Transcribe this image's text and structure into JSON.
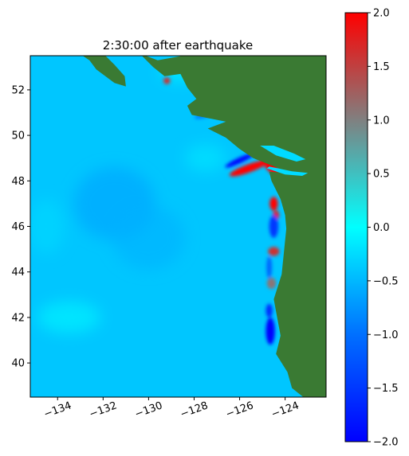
{
  "chart_data": {
    "type": "heatmap",
    "title": "2:30:00 after earthquake",
    "xlabel": "",
    "ylabel": "",
    "xlim": [
      -135.2,
      -122.2
    ],
    "ylim": [
      38.5,
      53.5
    ],
    "x_ticks": [
      -134,
      -132,
      -130,
      -128,
      -126,
      -124
    ],
    "x_tick_labels": [
      "−134",
      "−132",
      "−130",
      "−128",
      "−126",
      "−124"
    ],
    "y_ticks": [
      40,
      42,
      44,
      46,
      48,
      50,
      52
    ],
    "y_tick_labels": [
      "40",
      "42",
      "44",
      "46",
      "48",
      "50",
      "52"
    ],
    "colorbar": {
      "range": [
        -2.0,
        2.0
      ],
      "ticks": [
        -2.0,
        -1.5,
        -1.0,
        -0.5,
        0.0,
        0.5,
        1.0,
        1.5,
        2.0
      ],
      "tick_labels": [
        "−2.0",
        "−1.5",
        "−1.0",
        "−0.5",
        "0.0",
        "0.5",
        "1.0",
        "1.5",
        "2.0"
      ],
      "colors": [
        "#0000ff",
        "#0070ff",
        "#00ffff",
        "#808080",
        "#ff0000"
      ]
    },
    "land_color": "#3a7a33",
    "ocean_background_value": -0.4,
    "grid": false,
    "coastline": [
      [
        -122.2,
        53.5
      ],
      [
        -128.5,
        53.5
      ],
      [
        -129.6,
        53.3
      ],
      [
        -130.4,
        53.6
      ],
      [
        -129.8,
        53.0
      ],
      [
        -129.3,
        52.6
      ],
      [
        -128.6,
        52.7
      ],
      [
        -128.3,
        52.1
      ],
      [
        -127.9,
        51.6
      ],
      [
        -128.3,
        51.3
      ],
      [
        -128.1,
        50.9
      ],
      [
        -126.6,
        50.6
      ],
      [
        -127.4,
        50.3
      ],
      [
        -126.6,
        49.9
      ],
      [
        -126.0,
        49.4
      ],
      [
        -125.4,
        49.0
      ],
      [
        -124.4,
        48.6
      ],
      [
        -123.8,
        48.35
      ],
      [
        -124.7,
        48.4
      ],
      [
        -124.6,
        48.0
      ],
      [
        -124.2,
        47.2
      ],
      [
        -124.0,
        46.5
      ],
      [
        -123.95,
        45.9
      ],
      [
        -124.05,
        44.9
      ],
      [
        -124.15,
        43.9
      ],
      [
        -124.5,
        42.8
      ],
      [
        -124.35,
        42.0
      ],
      [
        -124.2,
        41.2
      ],
      [
        -124.4,
        40.4
      ],
      [
        -123.9,
        39.6
      ],
      [
        -123.7,
        38.9
      ],
      [
        -123.2,
        38.5
      ],
      [
        -122.2,
        38.5
      ]
    ],
    "strait": [
      [
        -124.8,
        48.55
      ],
      [
        -124.0,
        48.28
      ],
      [
        -123.25,
        48.22
      ],
      [
        -123.0,
        48.35
      ],
      [
        -123.7,
        48.42
      ],
      [
        -124.7,
        48.63
      ]
    ],
    "strait_of_georgia": [
      [
        -125.1,
        49.55
      ],
      [
        -124.4,
        49.12
      ],
      [
        -123.5,
        48.85
      ],
      [
        -123.1,
        48.95
      ],
      [
        -123.6,
        49.2
      ],
      [
        -124.5,
        49.55
      ]
    ],
    "haida_gwaii": [
      [
        -132.9,
        53.5
      ],
      [
        -131.9,
        53.5
      ],
      [
        -131.5,
        53.1
      ],
      [
        -131.05,
        52.6
      ],
      [
        -131.0,
        52.15
      ],
      [
        -131.5,
        52.3
      ],
      [
        -132.3,
        52.9
      ],
      [
        -132.6,
        53.3
      ]
    ],
    "wave_features": [
      {
        "lon": -124.7,
        "lat": 48.8,
        "value": 2.0,
        "rx": 0.25,
        "ry": 0.8,
        "rot": -35
      },
      {
        "lon": -125.6,
        "lat": 48.55,
        "value": 2.0,
        "rx": 0.9,
        "ry": 0.18,
        "rot": -20
      },
      {
        "lon": -124.5,
        "lat": 47.0,
        "value": 2.0,
        "rx": 0.18,
        "ry": 0.3,
        "rot": 0
      },
      {
        "lon": -124.4,
        "lat": 46.5,
        "value": 1.8,
        "rx": 0.14,
        "ry": 0.2,
        "rot": 0
      },
      {
        "lon": -124.5,
        "lat": 44.9,
        "value": 1.6,
        "rx": 0.25,
        "ry": 0.2,
        "rot": 0
      },
      {
        "lon": -124.6,
        "lat": 43.5,
        "value": 1.1,
        "rx": 0.2,
        "ry": 0.25,
        "rot": 0
      },
      {
        "lon": -129.2,
        "lat": 52.4,
        "value": 1.6,
        "rx": 0.15,
        "ry": 0.15,
        "rot": 0
      },
      {
        "lon": -122.6,
        "lat": 48.3,
        "value": 1.6,
        "rx": 0.2,
        "ry": 0.12,
        "rot": 0
      },
      {
        "lon": -126.0,
        "lat": 48.9,
        "value": -2.0,
        "rx": 0.7,
        "ry": 0.12,
        "rot": -25
      },
      {
        "lon": -124.65,
        "lat": 41.4,
        "value": -2.0,
        "rx": 0.2,
        "ry": 0.6,
        "rot": 0
      },
      {
        "lon": -124.7,
        "lat": 42.3,
        "value": -1.6,
        "rx": 0.15,
        "ry": 0.3,
        "rot": 0
      },
      {
        "lon": -124.5,
        "lat": 46.0,
        "value": -1.5,
        "rx": 0.2,
        "ry": 0.5,
        "rot": 0
      },
      {
        "lon": -124.7,
        "lat": 44.2,
        "value": -1.1,
        "rx": 0.12,
        "ry": 0.5,
        "rot": 0
      },
      {
        "lon": -123.3,
        "lat": 48.7,
        "value": -1.4,
        "rx": 0.4,
        "ry": 0.1,
        "rot": 10
      },
      {
        "lon": -127.5,
        "lat": 50.9,
        "value": -0.9,
        "rx": 0.5,
        "ry": 0.12,
        "rot": -15
      }
    ]
  }
}
